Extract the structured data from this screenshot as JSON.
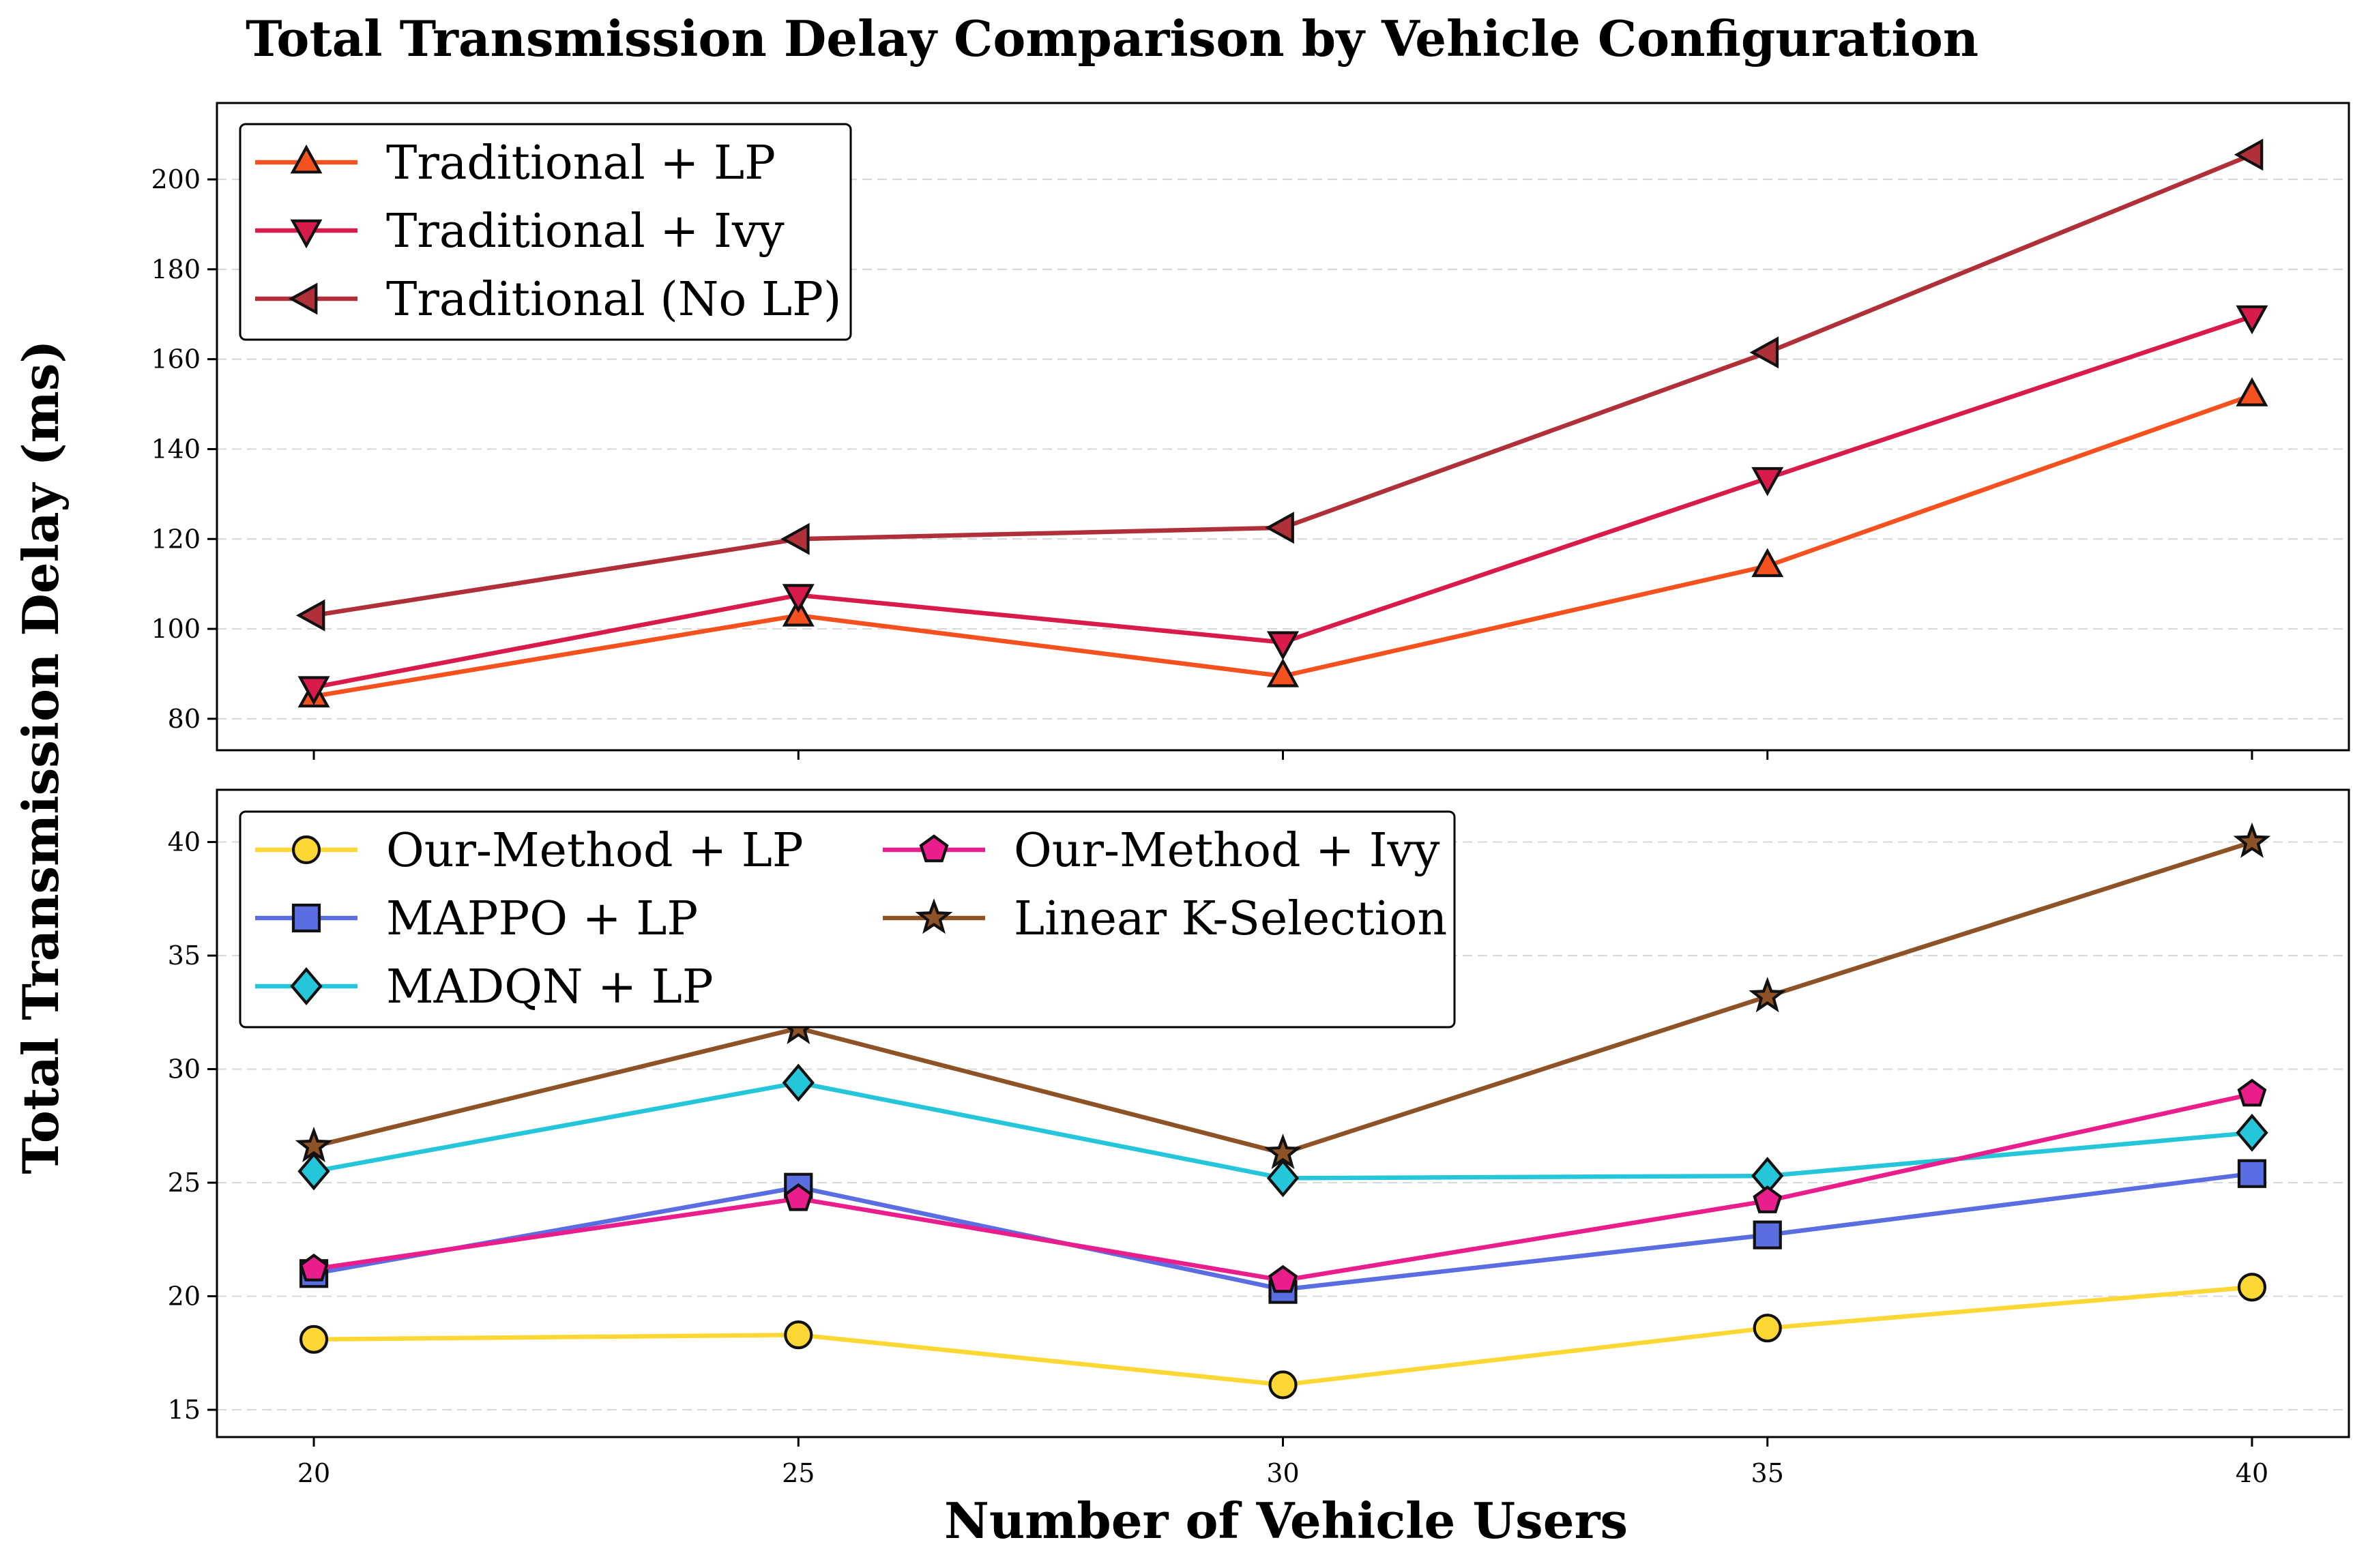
{
  "chart_data": {
    "type": "line",
    "title": "Total Transmission Delay Comparison by Vehicle Configuration",
    "xlabel": "Number of Vehicle Users",
    "ylabel": "Total Transmission Delay (ms)",
    "x": [
      20,
      25,
      30,
      35,
      40
    ],
    "xlim": [
      19,
      41
    ],
    "grid": true,
    "panels": [
      {
        "name": "top",
        "ylim": [
          73,
          217
        ],
        "yticks": [
          80,
          100,
          120,
          140,
          160,
          180,
          200
        ],
        "legend_position": "top-left",
        "legend_columns": 1,
        "series": [
          {
            "name": "Traditional + LP",
            "color": "#f4511e",
            "marker": "triangle-up",
            "values": [
              85,
              103,
              89.5,
              114,
              152
            ]
          },
          {
            "name": "Traditional + Ivy",
            "color": "#d81b4a",
            "marker": "triangle-down",
            "values": [
              87,
              107.5,
              97,
              133.5,
              169.5
            ]
          },
          {
            "name": "Traditional (No LP)",
            "color": "#b0303a",
            "marker": "triangle-left",
            "values": [
              103,
              120,
              122.5,
              161.5,
              205.5
            ]
          }
        ]
      },
      {
        "name": "bottom",
        "ylim": [
          13.8,
          42.3
        ],
        "yticks": [
          15,
          20,
          25,
          30,
          35,
          40
        ],
        "legend_position": "top-left",
        "legend_columns": 2,
        "series": [
          {
            "name": "Our-Method + LP",
            "color": "#fdd835",
            "marker": "circle",
            "values": [
              18.1,
              18.3,
              16.1,
              18.6,
              20.4
            ]
          },
          {
            "name": "MAPPO + LP",
            "color": "#5b6ee1",
            "marker": "square",
            "values": [
              21.0,
              24.8,
              20.3,
              22.7,
              25.4
            ]
          },
          {
            "name": "MADQN + LP",
            "color": "#26c6da",
            "marker": "diamond",
            "values": [
              25.5,
              29.4,
              25.2,
              25.3,
              27.2
            ]
          },
          {
            "name": "Our-Method + Ivy",
            "color": "#e91e8c",
            "marker": "pentagon",
            "values": [
              21.2,
              24.3,
              20.7,
              24.2,
              28.9
            ]
          },
          {
            "name": "Linear K-Selection",
            "color": "#8d5226",
            "marker": "star",
            "values": [
              26.6,
              31.8,
              26.3,
              33.2,
              40.0
            ]
          }
        ]
      }
    ]
  }
}
